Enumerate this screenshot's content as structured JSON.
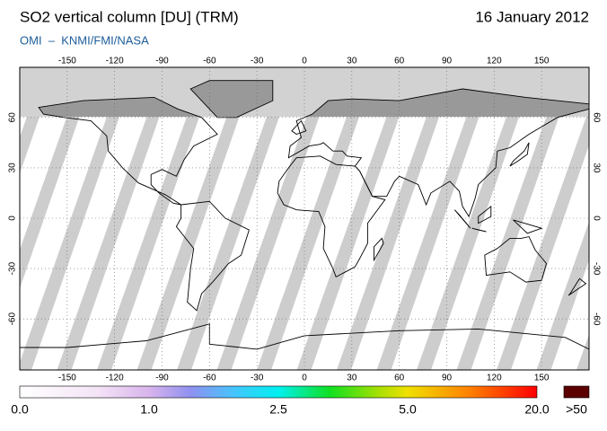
{
  "header": {
    "title": "SO2 vertical column [DU] (TRM)",
    "date": "16 January 2012",
    "source": "OMI  –  KNMI/FMI/NASA"
  },
  "map": {
    "lon_ticks": [
      -150,
      -120,
      -90,
      -60,
      -30,
      0,
      30,
      60,
      90,
      120,
      150
    ],
    "lat_ticks": [
      60,
      30,
      0,
      -30,
      -60
    ]
  },
  "colorbar": {
    "ticks": [
      {
        "value": 0,
        "label": "0.0"
      },
      {
        "value": 1,
        "label": "1.0"
      },
      2.5,
      {
        "value": 5,
        "label": "5.0"
      },
      {
        "value": 20,
        "label": "20.0"
      }
    ],
    "overflow_label": ">50"
  }
}
